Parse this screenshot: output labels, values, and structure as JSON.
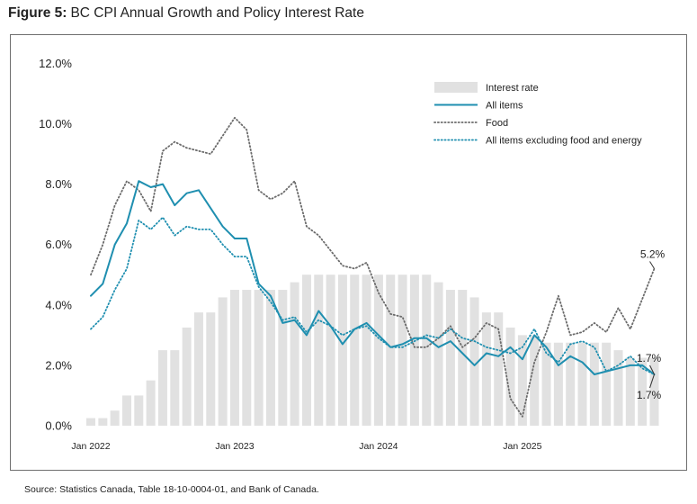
{
  "figure": {
    "label": "Figure 5:",
    "title": "BC CPI Annual Growth and Policy Interest Rate",
    "source": "Source: Statistics Canada, Table 18-10-0004-01, and Bank of Canada."
  },
  "chart_data": {
    "type": "bar+line",
    "title": "BC CPI Annual Growth and Policy Interest Rate",
    "xlabel": "",
    "ylabel": "",
    "ylim": [
      0,
      12
    ],
    "yticks": [
      "0.0%",
      "2.0%",
      "4.0%",
      "6.0%",
      "8.0%",
      "10.0%",
      "12.0%"
    ],
    "ytick_values": [
      0,
      2,
      4,
      6,
      8,
      10,
      12
    ],
    "xtick_labels": [
      "Jan 2022",
      "Jan 2023",
      "Jan 2024",
      "Jan 2025"
    ],
    "xtick_indices": [
      0,
      12,
      24,
      36
    ],
    "months": [
      "2022-01",
      "2022-02",
      "2022-03",
      "2022-04",
      "2022-05",
      "2022-06",
      "2022-07",
      "2022-08",
      "2022-09",
      "2022-10",
      "2022-11",
      "2022-12",
      "2023-01",
      "2023-02",
      "2023-03",
      "2023-04",
      "2023-05",
      "2023-06",
      "2023-07",
      "2023-08",
      "2023-09",
      "2023-10",
      "2023-11",
      "2023-12",
      "2024-01",
      "2024-02",
      "2024-03",
      "2024-04",
      "2024-05",
      "2024-06",
      "2024-07",
      "2024-08",
      "2024-09",
      "2024-10",
      "2024-11",
      "2024-12",
      "2025-01",
      "2025-02",
      "2025-03",
      "2025-04",
      "2025-05",
      "2025-06",
      "2025-07",
      "2025-08",
      "2025-09",
      "2025-10",
      "2025-11",
      "2025-12"
    ],
    "grid": false,
    "legend_position": "top-right",
    "series": [
      {
        "name": "Interest rate",
        "kind": "bar",
        "color": "#e1e1e1",
        "values": [
          0.25,
          0.25,
          0.5,
          1.0,
          1.0,
          1.5,
          2.5,
          2.5,
          3.25,
          3.75,
          3.75,
          4.25,
          4.5,
          4.5,
          4.5,
          4.5,
          4.5,
          4.75,
          5.0,
          5.0,
          5.0,
          5.0,
          5.0,
          5.0,
          5.0,
          5.0,
          5.0,
          5.0,
          5.0,
          4.75,
          4.5,
          4.5,
          4.25,
          3.75,
          3.75,
          3.25,
          3.0,
          3.0,
          2.75,
          2.75,
          2.75,
          2.75,
          2.75,
          2.75,
          2.5,
          2.25,
          2.25,
          2.25
        ]
      },
      {
        "name": "All items",
        "kind": "line",
        "style": "solid",
        "color": "#1f8fb0",
        "values": [
          4.3,
          4.7,
          6.0,
          6.7,
          8.1,
          7.9,
          8.0,
          7.3,
          7.7,
          7.8,
          7.2,
          6.6,
          6.2,
          6.2,
          4.7,
          4.3,
          3.4,
          3.5,
          3.0,
          3.8,
          3.3,
          2.7,
          3.2,
          3.4,
          3.0,
          2.6,
          2.7,
          2.9,
          2.9,
          2.6,
          2.8,
          2.4,
          2.0,
          2.4,
          2.3,
          2.6,
          2.2,
          3.0,
          2.6,
          2.0,
          2.3,
          2.1,
          1.7,
          1.8,
          1.9,
          2.0,
          2.0,
          1.7
        ]
      },
      {
        "name": "Food",
        "kind": "line",
        "style": "dotted",
        "color": "#6b6b6b",
        "values": [
          5.0,
          6.0,
          7.3,
          8.1,
          7.8,
          7.1,
          9.1,
          9.4,
          9.2,
          9.1,
          9.0,
          9.6,
          10.2,
          9.8,
          7.8,
          7.5,
          7.7,
          8.1,
          6.6,
          6.3,
          5.8,
          5.3,
          5.2,
          5.4,
          4.4,
          3.7,
          3.6,
          2.6,
          2.6,
          2.9,
          3.3,
          2.6,
          2.9,
          3.4,
          3.2,
          0.9,
          0.3,
          2.1,
          3.1,
          4.3,
          3.0,
          3.1,
          3.4,
          3.1,
          3.9,
          3.2,
          4.2,
          5.2
        ]
      },
      {
        "name": "All items excluding food and energy",
        "kind": "line",
        "style": "dotted",
        "color": "#1f8fb0",
        "values": [
          3.2,
          3.6,
          4.5,
          5.2,
          6.8,
          6.5,
          6.9,
          6.3,
          6.6,
          6.5,
          6.5,
          6.0,
          5.6,
          5.6,
          4.6,
          4.1,
          3.5,
          3.6,
          3.1,
          3.5,
          3.3,
          3.0,
          3.2,
          3.3,
          2.9,
          2.6,
          2.6,
          2.8,
          3.0,
          2.9,
          3.2,
          2.9,
          2.8,
          2.6,
          2.5,
          2.4,
          2.6,
          3.2,
          2.4,
          2.1,
          2.7,
          2.8,
          2.6,
          1.8,
          2.0,
          2.3,
          1.9,
          1.7
        ]
      }
    ],
    "annotations": [
      {
        "series": "Food",
        "text": "5.2%",
        "position": "above-end"
      },
      {
        "series": "All items excluding food and energy",
        "text": "1.7%",
        "position": "above-end"
      },
      {
        "series": "All items",
        "text": "1.7%",
        "position": "below-end"
      }
    ]
  }
}
